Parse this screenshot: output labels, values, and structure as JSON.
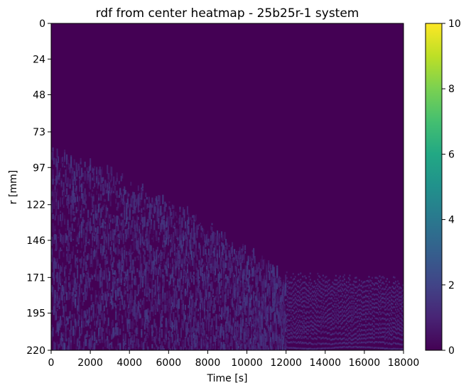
{
  "chart_data": {
    "type": "heatmap",
    "title": "rdf from center heatmap - 25b25r-1 system",
    "xlabel": "Time [s]",
    "ylabel": "r [mm]",
    "xlim": [
      0,
      18000
    ],
    "ylim": [
      0,
      220
    ],
    "y_inverted": true,
    "x_ticks": [
      0,
      2000,
      4000,
      6000,
      8000,
      10000,
      12000,
      14000,
      16000,
      18000
    ],
    "y_ticks": [
      0,
      24,
      48,
      73,
      97,
      122,
      146,
      171,
      195,
      220
    ],
    "colorbar": {
      "colormap": "viridis",
      "range": [
        0,
        10
      ],
      "ticks": [
        0,
        2,
        4,
        6,
        8,
        10
      ]
    },
    "background_value": 0,
    "structure": {
      "description_note": "",
      "front_r_start": 84,
      "front_r_at_12000s": 170,
      "front_r_at_18000s": 174,
      "max_observed_value": 1.5
    }
  }
}
